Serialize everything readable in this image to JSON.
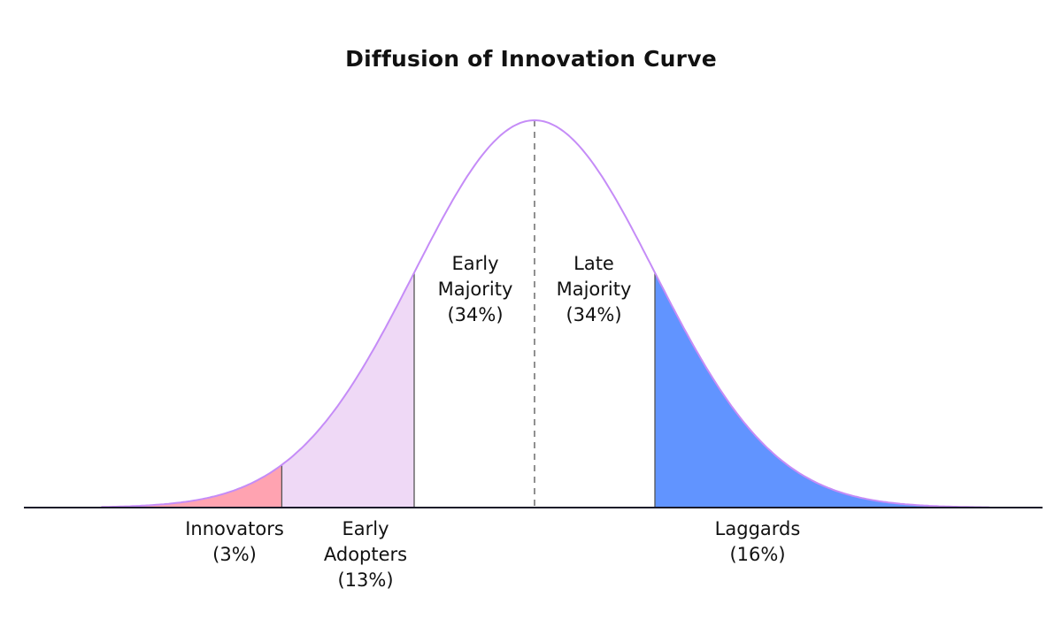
{
  "chart_data": {
    "type": "area",
    "title": "Diffusion of Innovation Curve",
    "distribution": "normal",
    "segments": [
      {
        "name": "Innovators",
        "percent_label": "(3%)",
        "percent": 3,
        "from_sd": -4,
        "to_sd": -2.1,
        "color": "#ffa3b1"
      },
      {
        "name": "Early Adopters",
        "name_lines": [
          "Early",
          "Adopters"
        ],
        "percent_label": "(13%)",
        "percent": 13,
        "from_sd": -2.1,
        "to_sd": -1,
        "color": "#efd9f6"
      },
      {
        "name": "Early Majority",
        "name_lines": [
          "Early",
          "Majority"
        ],
        "percent_label": "(34%)",
        "percent": 34,
        "from_sd": -1,
        "to_sd": 0,
        "color": "#ffffff"
      },
      {
        "name": "Late Majority",
        "name_lines": [
          "Late",
          "Majority"
        ],
        "percent_label": "(34%)",
        "percent": 34,
        "from_sd": 0,
        "to_sd": 1,
        "color": "#ffffff"
      },
      {
        "name": "Laggards",
        "percent_label": "(16%)",
        "percent": 16,
        "from_sd": 1,
        "to_sd": 4,
        "color": "#6194ff"
      }
    ],
    "curve_color": "#c58cf7",
    "mean_line": "dashed"
  }
}
